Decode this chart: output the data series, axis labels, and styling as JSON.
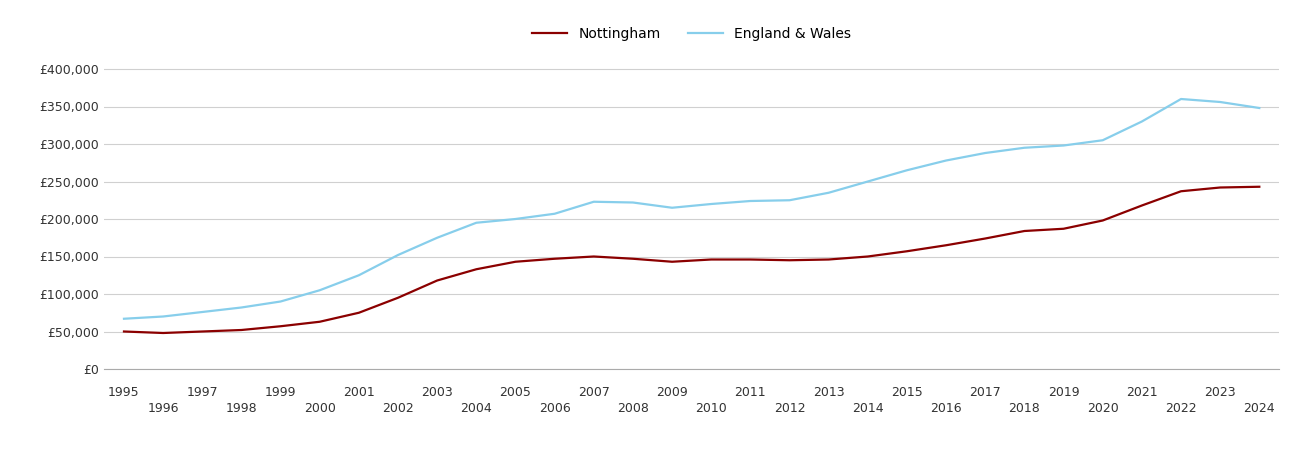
{
  "nottingham": {
    "years": [
      1995,
      1996,
      1997,
      1998,
      1999,
      2000,
      2001,
      2002,
      2003,
      2004,
      2005,
      2006,
      2007,
      2008,
      2009,
      2010,
      2011,
      2012,
      2013,
      2014,
      2015,
      2016,
      2017,
      2018,
      2019,
      2020,
      2021,
      2022,
      2023,
      2024
    ],
    "values": [
      50000,
      48000,
      50000,
      52000,
      57000,
      63000,
      75000,
      95000,
      118000,
      133000,
      143000,
      147000,
      150000,
      147000,
      143000,
      146000,
      146000,
      145000,
      146000,
      150000,
      157000,
      165000,
      174000,
      184000,
      187000,
      198000,
      218000,
      237000,
      242000,
      243000
    ]
  },
  "england_wales": {
    "years": [
      1995,
      1996,
      1997,
      1998,
      1999,
      2000,
      2001,
      2002,
      2003,
      2004,
      2005,
      2006,
      2007,
      2008,
      2009,
      2010,
      2011,
      2012,
      2013,
      2014,
      2015,
      2016,
      2017,
      2018,
      2019,
      2020,
      2021,
      2022,
      2023,
      2024
    ],
    "values": [
      67000,
      70000,
      76000,
      82000,
      90000,
      105000,
      125000,
      152000,
      175000,
      195000,
      200000,
      207000,
      223000,
      222000,
      215000,
      220000,
      224000,
      225000,
      235000,
      250000,
      265000,
      278000,
      288000,
      295000,
      298000,
      305000,
      330000,
      360000,
      356000,
      348000
    ]
  },
  "nottingham_color": "#8b0000",
  "england_wales_color": "#87ceeb",
  "background_color": "#ffffff",
  "grid_color": "#d0d0d0",
  "ylim": [
    0,
    420000
  ],
  "yticks": [
    0,
    50000,
    100000,
    150000,
    200000,
    250000,
    300000,
    350000,
    400000
  ],
  "xticks_odd": [
    1995,
    1997,
    1999,
    2001,
    2003,
    2005,
    2007,
    2009,
    2011,
    2013,
    2015,
    2017,
    2019,
    2021,
    2023
  ],
  "xticks_even": [
    1996,
    1998,
    2000,
    2002,
    2004,
    2006,
    2008,
    2010,
    2012,
    2014,
    2016,
    2018,
    2020,
    2022,
    2024
  ],
  "legend_nottingham": "Nottingham",
  "legend_england_wales": "England & Wales",
  "line_width": 1.6
}
